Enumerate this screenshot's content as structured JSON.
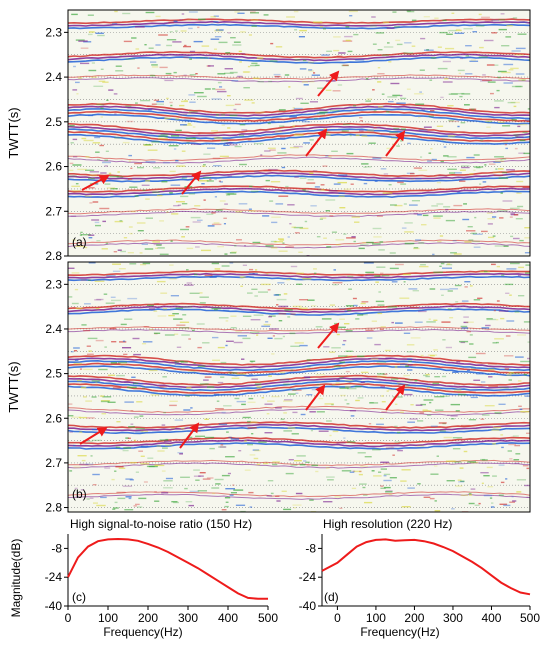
{
  "figure": {
    "panels": [
      {
        "id": "a",
        "label": "(a)"
      },
      {
        "id": "b",
        "label": "(b)"
      }
    ],
    "spectra": [
      {
        "id": "c",
        "label": "(c)",
        "title": "High signal-to-noise ratio (150 Hz)"
      },
      {
        "id": "d",
        "label": "(d)",
        "title": "High resolution (220 Hz)"
      }
    ]
  },
  "chart_data": [
    {
      "type": "heatmap",
      "panel": "(a)",
      "ylabel": "TWTT(s)",
      "yticks": [
        2.3,
        2.4,
        2.5,
        2.6,
        2.7,
        2.8
      ],
      "ylim": [
        2.8,
        2.25
      ],
      "colors": {
        "trough": "#1f5fd6",
        "mid": "#3aa53a",
        "low": "#d8d63a",
        "peak": "#d0302c",
        "deep": "#7a1f8f"
      },
      "arrow_color": "#ee1b1b",
      "arrow_count": 6
    },
    {
      "type": "heatmap",
      "panel": "(b)",
      "ylabel": "TWTT(s)",
      "yticks": [
        2.3,
        2.4,
        2.5,
        2.6,
        2.7,
        2.8
      ],
      "ylim": [
        2.81,
        2.25
      ],
      "colors": {
        "trough": "#1f5fd6",
        "mid": "#3aa53a",
        "low": "#d8d63a",
        "peak": "#d0302c",
        "deep": "#7a1f8f"
      },
      "arrow_color": "#ee1b1b",
      "arrow_count": 6
    },
    {
      "type": "line",
      "panel": "(c)",
      "title": "High signal-to-noise ratio (150 Hz)",
      "xlabel": "Frequency(Hz)",
      "ylabel": "Magnitude(dB)",
      "xlim": [
        0,
        500
      ],
      "ylim": [
        -40,
        0
      ],
      "xticks": [
        0,
        100,
        200,
        300,
        400,
        500
      ],
      "yticks": [
        -8,
        -24,
        -40
      ],
      "series": [
        {
          "color": "#ee1b1b",
          "x": [
            0,
            25,
            50,
            75,
            100,
            125,
            150,
            175,
            200,
            225,
            250,
            275,
            300,
            325,
            350,
            375,
            400,
            425,
            450,
            475,
            500
          ],
          "y": [
            -24,
            -13,
            -7,
            -4,
            -3,
            -2.8,
            -3,
            -3.8,
            -5.5,
            -7.5,
            -10,
            -13,
            -16,
            -19,
            -22.5,
            -26,
            -29.5,
            -33,
            -35.5,
            -36,
            -36
          ]
        }
      ]
    },
    {
      "type": "line",
      "panel": "(d)",
      "title": "High resolution (220 Hz)",
      "xlabel": "Frequency(Hz)",
      "ylabel": "",
      "xlim": [
        -40,
        500
      ],
      "ylim": [
        -40,
        0
      ],
      "xticks": [
        0,
        100,
        200,
        300,
        400,
        500
      ],
      "yticks": [
        -8,
        -24,
        -40
      ],
      "series": [
        {
          "color": "#ee1b1b",
          "x": [
            -40,
            0,
            25,
            50,
            75,
            100,
            125,
            150,
            175,
            200,
            225,
            250,
            275,
            300,
            325,
            350,
            375,
            400,
            425,
            450,
            475,
            500
          ],
          "y": [
            -20.5,
            -16,
            -11.5,
            -7,
            -4.5,
            -3.3,
            -3,
            -3.8,
            -3.5,
            -3.3,
            -4,
            -5.3,
            -7.2,
            -9.5,
            -12.5,
            -15.5,
            -19,
            -23,
            -27,
            -30,
            -32.5,
            -33.5
          ]
        }
      ]
    }
  ]
}
